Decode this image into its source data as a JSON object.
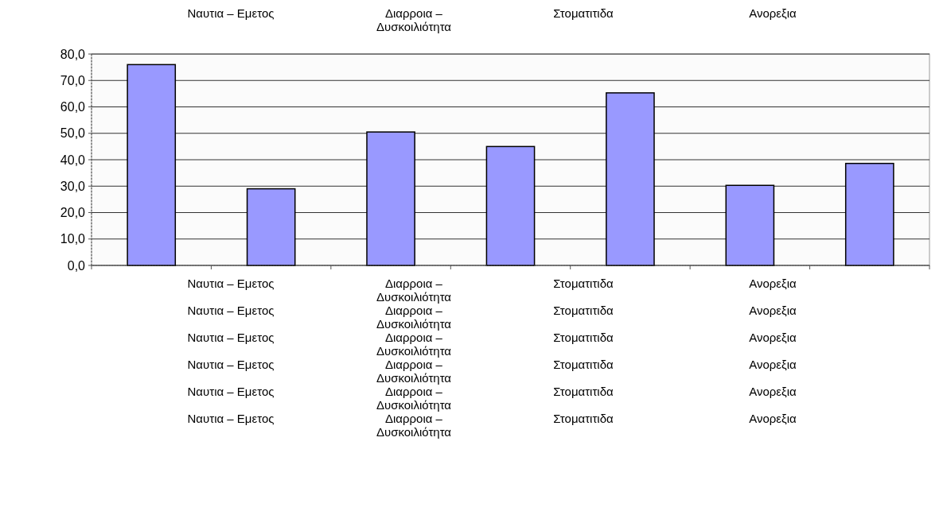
{
  "chart_data": {
    "type": "bar",
    "categories": [
      null,
      null,
      null,
      null,
      null,
      null,
      null
    ],
    "values": [
      76,
      29,
      50.5,
      45,
      65.3,
      30.3,
      38.6
    ],
    "color": "#9999ff",
    "ylim": [
      0,
      80
    ],
    "yticks": [
      {
        "value": 0,
        "label": "0,0"
      },
      {
        "value": 10,
        "label": "10,0"
      },
      {
        "value": 20,
        "label": "20,0"
      },
      {
        "value": 30,
        "label": "30,0"
      },
      {
        "value": 40,
        "label": "40,0"
      },
      {
        "value": 50,
        "label": "50,0"
      },
      {
        "value": 60,
        "label": "60,0"
      },
      {
        "value": 70,
        "label": "70,0"
      },
      {
        "value": 80,
        "label": "80,0"
      }
    ],
    "grid": "y",
    "annotations": [
      "Ναυτια – Εμετος",
      "Διαρροια – Δυσκοιλιότητα",
      "Στοματιτιδα",
      "Ανορεξια",
      "Ναυτια – Εμετος",
      "Διαρροια – Δυσκοιλιότητα",
      "Στοματιτιδα",
      "Ανορεξια",
      "Ναυτια – Εμετος",
      "Διαρροια – Δυσκοιλιότητα",
      "Στοματιτιδα",
      "Ανορεξια",
      "Ναυτια – Εμετος",
      "Διαρροια – Δυσκοιλιότητα",
      "Στοματιτιδα",
      "Ανορεξια",
      "Ναυτια – Εμετος",
      "Διαρροια – Δυσκοιλιότητα",
      "Στοματιτιδα",
      "Ανορεξια",
      "Ναυτια – Εμετος",
      "Διαρροια – Δυσκοιλιότητα",
      "Στοματιτιδα",
      "Ανορεξια",
      "Ναυτια – Εμετος",
      "Διαρροια – Δυσκοιλιότητα",
      "Στοματιτιδα",
      "Ανορεξια"
    ]
  }
}
